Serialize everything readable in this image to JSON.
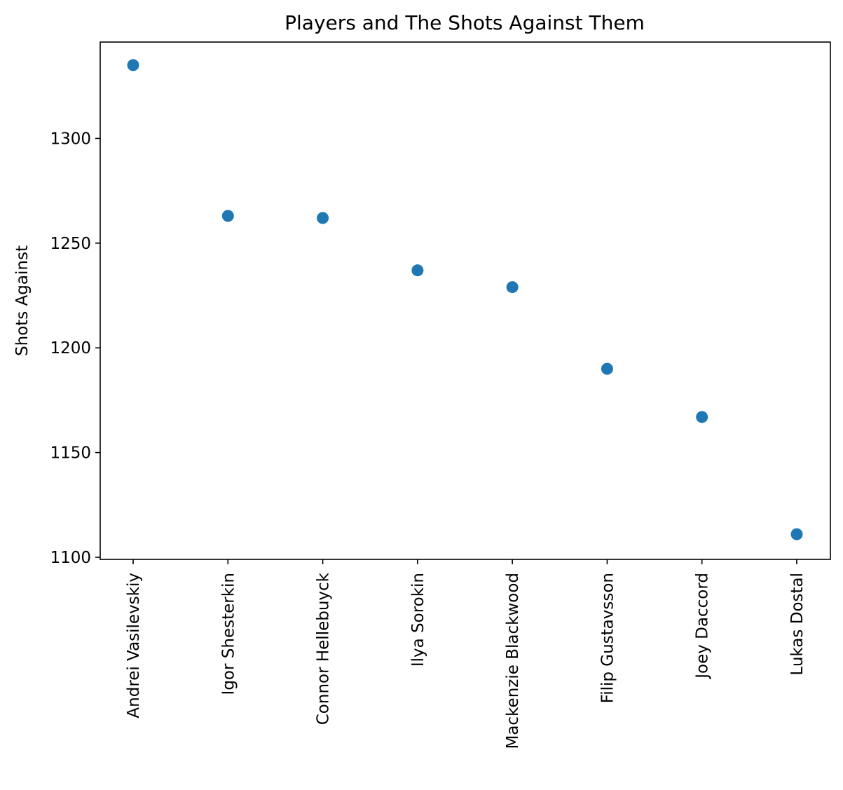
{
  "chart_data": {
    "type": "scatter",
    "title": "Players and The Shots Against Them",
    "xlabel": "",
    "ylabel": "Shots Against",
    "categories": [
      "Andrei Vasilevskiy",
      "Igor Shesterkin",
      "Connor Hellebuyck",
      "Ilya Sorokin",
      "Mackenzie Blackwood",
      "Filip Gustavsson",
      "Joey Daccord",
      "Lukas Dostal"
    ],
    "values": [
      1335,
      1263,
      1262,
      1237,
      1229,
      1190,
      1167,
      1111
    ],
    "ylim": [
      1099,
      1346
    ],
    "yticks": [
      1100,
      1150,
      1200,
      1250,
      1300
    ],
    "ytick_labels": [
      "1100",
      "1150",
      "1200",
      "1250",
      "1300"
    ],
    "x_tick_rotation": 90,
    "grid": false,
    "legend": "none",
    "marker_color": "#1f77b4"
  }
}
